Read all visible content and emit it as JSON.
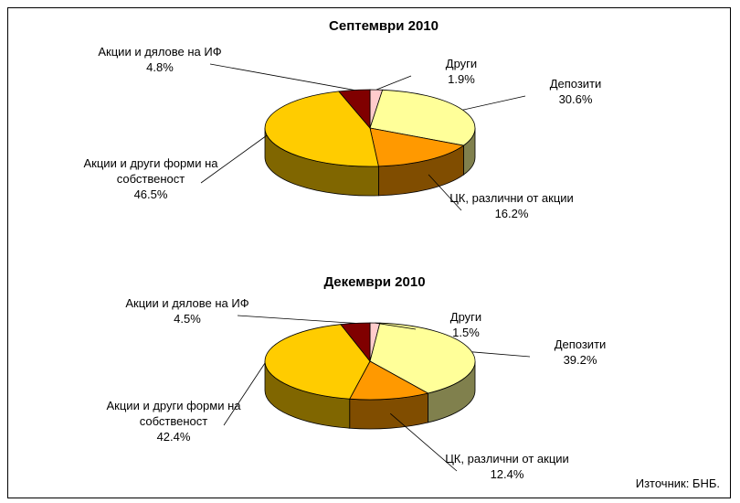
{
  "chart_data": [
    {
      "type": "pie3d",
      "title": "Септември 2010",
      "categories": [
        "Други",
        "Депозити",
        "ЦК, различни от акции",
        "Акции и други форми на собственост",
        "Акции и дялове на ИФ"
      ],
      "values": [
        1.9,
        30.6,
        16.2,
        46.5,
        4.8
      ],
      "value_labels": [
        "1.9%",
        "30.6%",
        "16.2%",
        "46.5%",
        "4.8%"
      ],
      "colors": [
        "#FFCCCC",
        "#FFFF99",
        "#FF9900",
        "#FFCC00",
        "#800000"
      ]
    },
    {
      "type": "pie3d",
      "title": "Декември 2010",
      "categories": [
        "Други",
        "Депозити",
        "ЦК, различни от акции",
        "Акции и други форми на собственост",
        "Акции и дялове на ИФ"
      ],
      "values": [
        1.5,
        39.2,
        12.4,
        42.4,
        4.5
      ],
      "value_labels": [
        "1.5%",
        "39.2%",
        "12.4%",
        "42.4%",
        "4.5%"
      ],
      "colors": [
        "#FFCCCC",
        "#FFFF99",
        "#FF9900",
        "#FFCC00",
        "#800000"
      ]
    }
  ],
  "source": "Източник: БНБ."
}
